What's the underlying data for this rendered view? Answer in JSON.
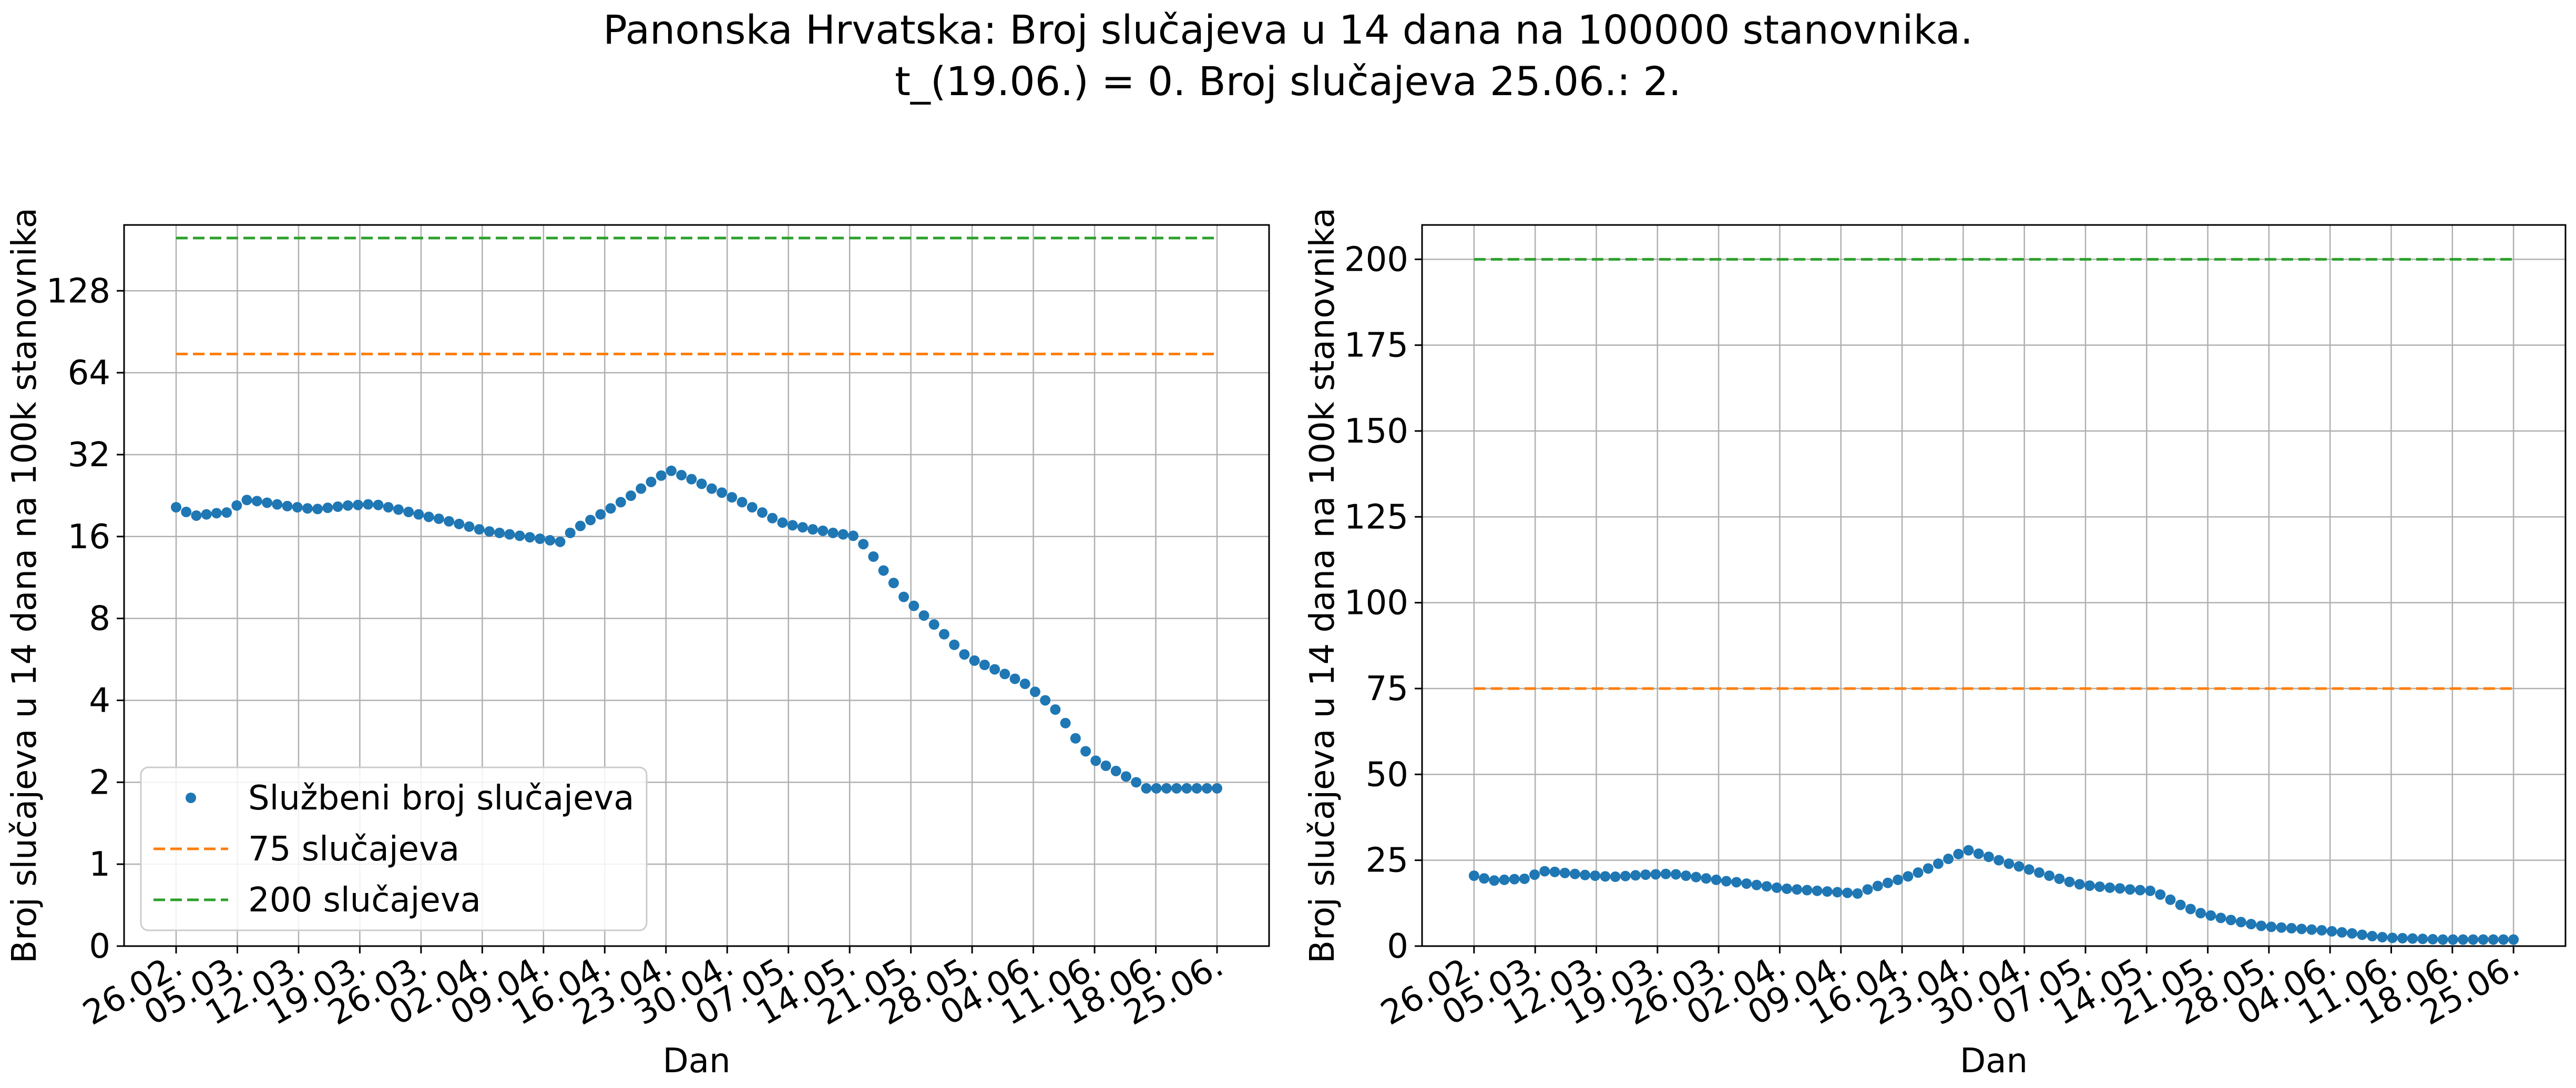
{
  "figure": {
    "title_line1": "Panonska Hrvatska: Broj slučajeva u 14 dana na 100000 stanovnika.",
    "title_line2": "t_(19.06.) = 0. Broj slučajeva 25.06.: 2."
  },
  "colors": {
    "cases": "#1f77b4",
    "threshold_75": "#ff7f0e",
    "threshold_200": "#2ca02c",
    "grid": "#b0b0b0"
  },
  "chart_data": [
    {
      "type": "scatter",
      "scale": "symlog-base2",
      "xlabel": "Dan",
      "ylabel": "Broj slučajeva u 14 dana na 100k stanovnika",
      "x_tick_labels": [
        "26.02.",
        "05.03.",
        "12.03.",
        "19.03.",
        "26.03.",
        "02.04.",
        "09.04.",
        "16.04.",
        "23.04.",
        "30.04.",
        "07.05.",
        "14.05.",
        "21.05.",
        "28.05.",
        "04.06.",
        "11.06.",
        "18.06.",
        "25.06."
      ],
      "y_ticks": [
        0,
        1,
        2,
        4,
        8,
        16,
        32,
        64,
        128
      ],
      "y_tick_labels": [
        "0",
        "1",
        "2",
        "4",
        "8",
        "16",
        "32",
        "64",
        "128"
      ],
      "grid": true,
      "legend": {
        "placement": "lower-left",
        "entries": [
          "Službeni broj slučajeva",
          "75 slučajeva",
          "200 slučajeva"
        ]
      },
      "series": [
        {
          "name": "Službeni broj slučajeva",
          "x_start": "26.02.",
          "x_step_days": 1,
          "values": [
            20.5,
            19.7,
            19.1,
            19.3,
            19.5,
            19.6,
            20.8,
            21.8,
            21.6,
            21.3,
            21.0,
            20.7,
            20.5,
            20.3,
            20.2,
            20.4,
            20.6,
            20.8,
            20.9,
            21.0,
            20.9,
            20.5,
            20.1,
            19.7,
            19.3,
            18.9,
            18.6,
            18.2,
            17.8,
            17.4,
            17.0,
            16.7,
            16.5,
            16.3,
            16.1,
            15.9,
            15.7,
            15.5,
            15.3,
            16.5,
            17.5,
            18.4,
            19.3,
            20.3,
            21.4,
            22.6,
            24.0,
            25.4,
            26.8,
            27.9,
            26.9,
            26.0,
            25.0,
            24.0,
            23.2,
            22.3,
            21.4,
            20.5,
            19.6,
            18.7,
            18.0,
            17.6,
            17.3,
            17.0,
            16.8,
            16.5,
            16.3,
            16.1,
            15.0,
            13.5,
            12.0,
            10.8,
            9.6,
            8.9,
            8.2,
            7.6,
            7.0,
            6.4,
            5.9,
            5.6,
            5.4,
            5.2,
            5.0,
            4.8,
            4.6,
            4.3,
            4.0,
            3.7,
            3.3,
            2.9,
            2.6,
            2.4,
            2.3,
            2.2,
            2.1,
            2.0,
            1.9,
            1.9,
            1.9,
            1.9,
            1.9,
            1.9,
            1.9,
            1.9
          ]
        },
        {
          "name": "75 slučajeva",
          "values": [
            75,
            75
          ]
        },
        {
          "name": "200 slučajeva",
          "values": [
            200,
            200
          ]
        }
      ]
    },
    {
      "type": "scatter",
      "scale": "linear",
      "xlabel": "Dan",
      "ylabel": "Broj slučajeva u 14 dana na 100k stanovnika",
      "x_tick_labels": [
        "26.02.",
        "05.03.",
        "12.03.",
        "19.03.",
        "26.03.",
        "02.04.",
        "09.04.",
        "16.04.",
        "23.04.",
        "30.04.",
        "07.05.",
        "14.05.",
        "21.05.",
        "28.05.",
        "04.06.",
        "11.06.",
        "18.06.",
        "25.06."
      ],
      "y_ticks": [
        0,
        25,
        50,
        75,
        100,
        125,
        150,
        175,
        200
      ],
      "y_tick_labels": [
        "0",
        "25",
        "50",
        "75",
        "100",
        "125",
        "150",
        "175",
        "200"
      ],
      "ylim": [
        0,
        210
      ],
      "grid": true,
      "series": [
        {
          "name": "Službeni broj slučajeva",
          "x_start": "26.02.",
          "x_step_days": 1,
          "values": [
            20.5,
            19.7,
            19.1,
            19.3,
            19.5,
            19.6,
            20.8,
            21.8,
            21.6,
            21.3,
            21.0,
            20.7,
            20.5,
            20.3,
            20.2,
            20.4,
            20.6,
            20.8,
            20.9,
            21.0,
            20.9,
            20.5,
            20.1,
            19.7,
            19.3,
            18.9,
            18.6,
            18.2,
            17.8,
            17.4,
            17.0,
            16.7,
            16.5,
            16.3,
            16.1,
            15.9,
            15.7,
            15.5,
            15.3,
            16.5,
            17.5,
            18.4,
            19.3,
            20.3,
            21.4,
            22.6,
            24.0,
            25.4,
            26.8,
            27.9,
            26.9,
            26.0,
            25.0,
            24.0,
            23.2,
            22.3,
            21.4,
            20.5,
            19.6,
            18.7,
            18.0,
            17.6,
            17.3,
            17.0,
            16.8,
            16.5,
            16.3,
            16.1,
            15.0,
            13.5,
            12.0,
            10.8,
            9.6,
            8.9,
            8.2,
            7.6,
            7.0,
            6.4,
            5.9,
            5.6,
            5.4,
            5.2,
            5.0,
            4.8,
            4.6,
            4.3,
            4.0,
            3.7,
            3.3,
            2.9,
            2.6,
            2.4,
            2.3,
            2.2,
            2.1,
            2.0,
            1.9,
            1.9,
            1.9,
            1.9,
            1.9,
            1.9,
            1.9,
            1.9
          ]
        },
        {
          "name": "75 slučajeva",
          "values": [
            75,
            75
          ]
        },
        {
          "name": "200 slučajeva",
          "values": [
            200,
            200
          ]
        }
      ]
    }
  ]
}
